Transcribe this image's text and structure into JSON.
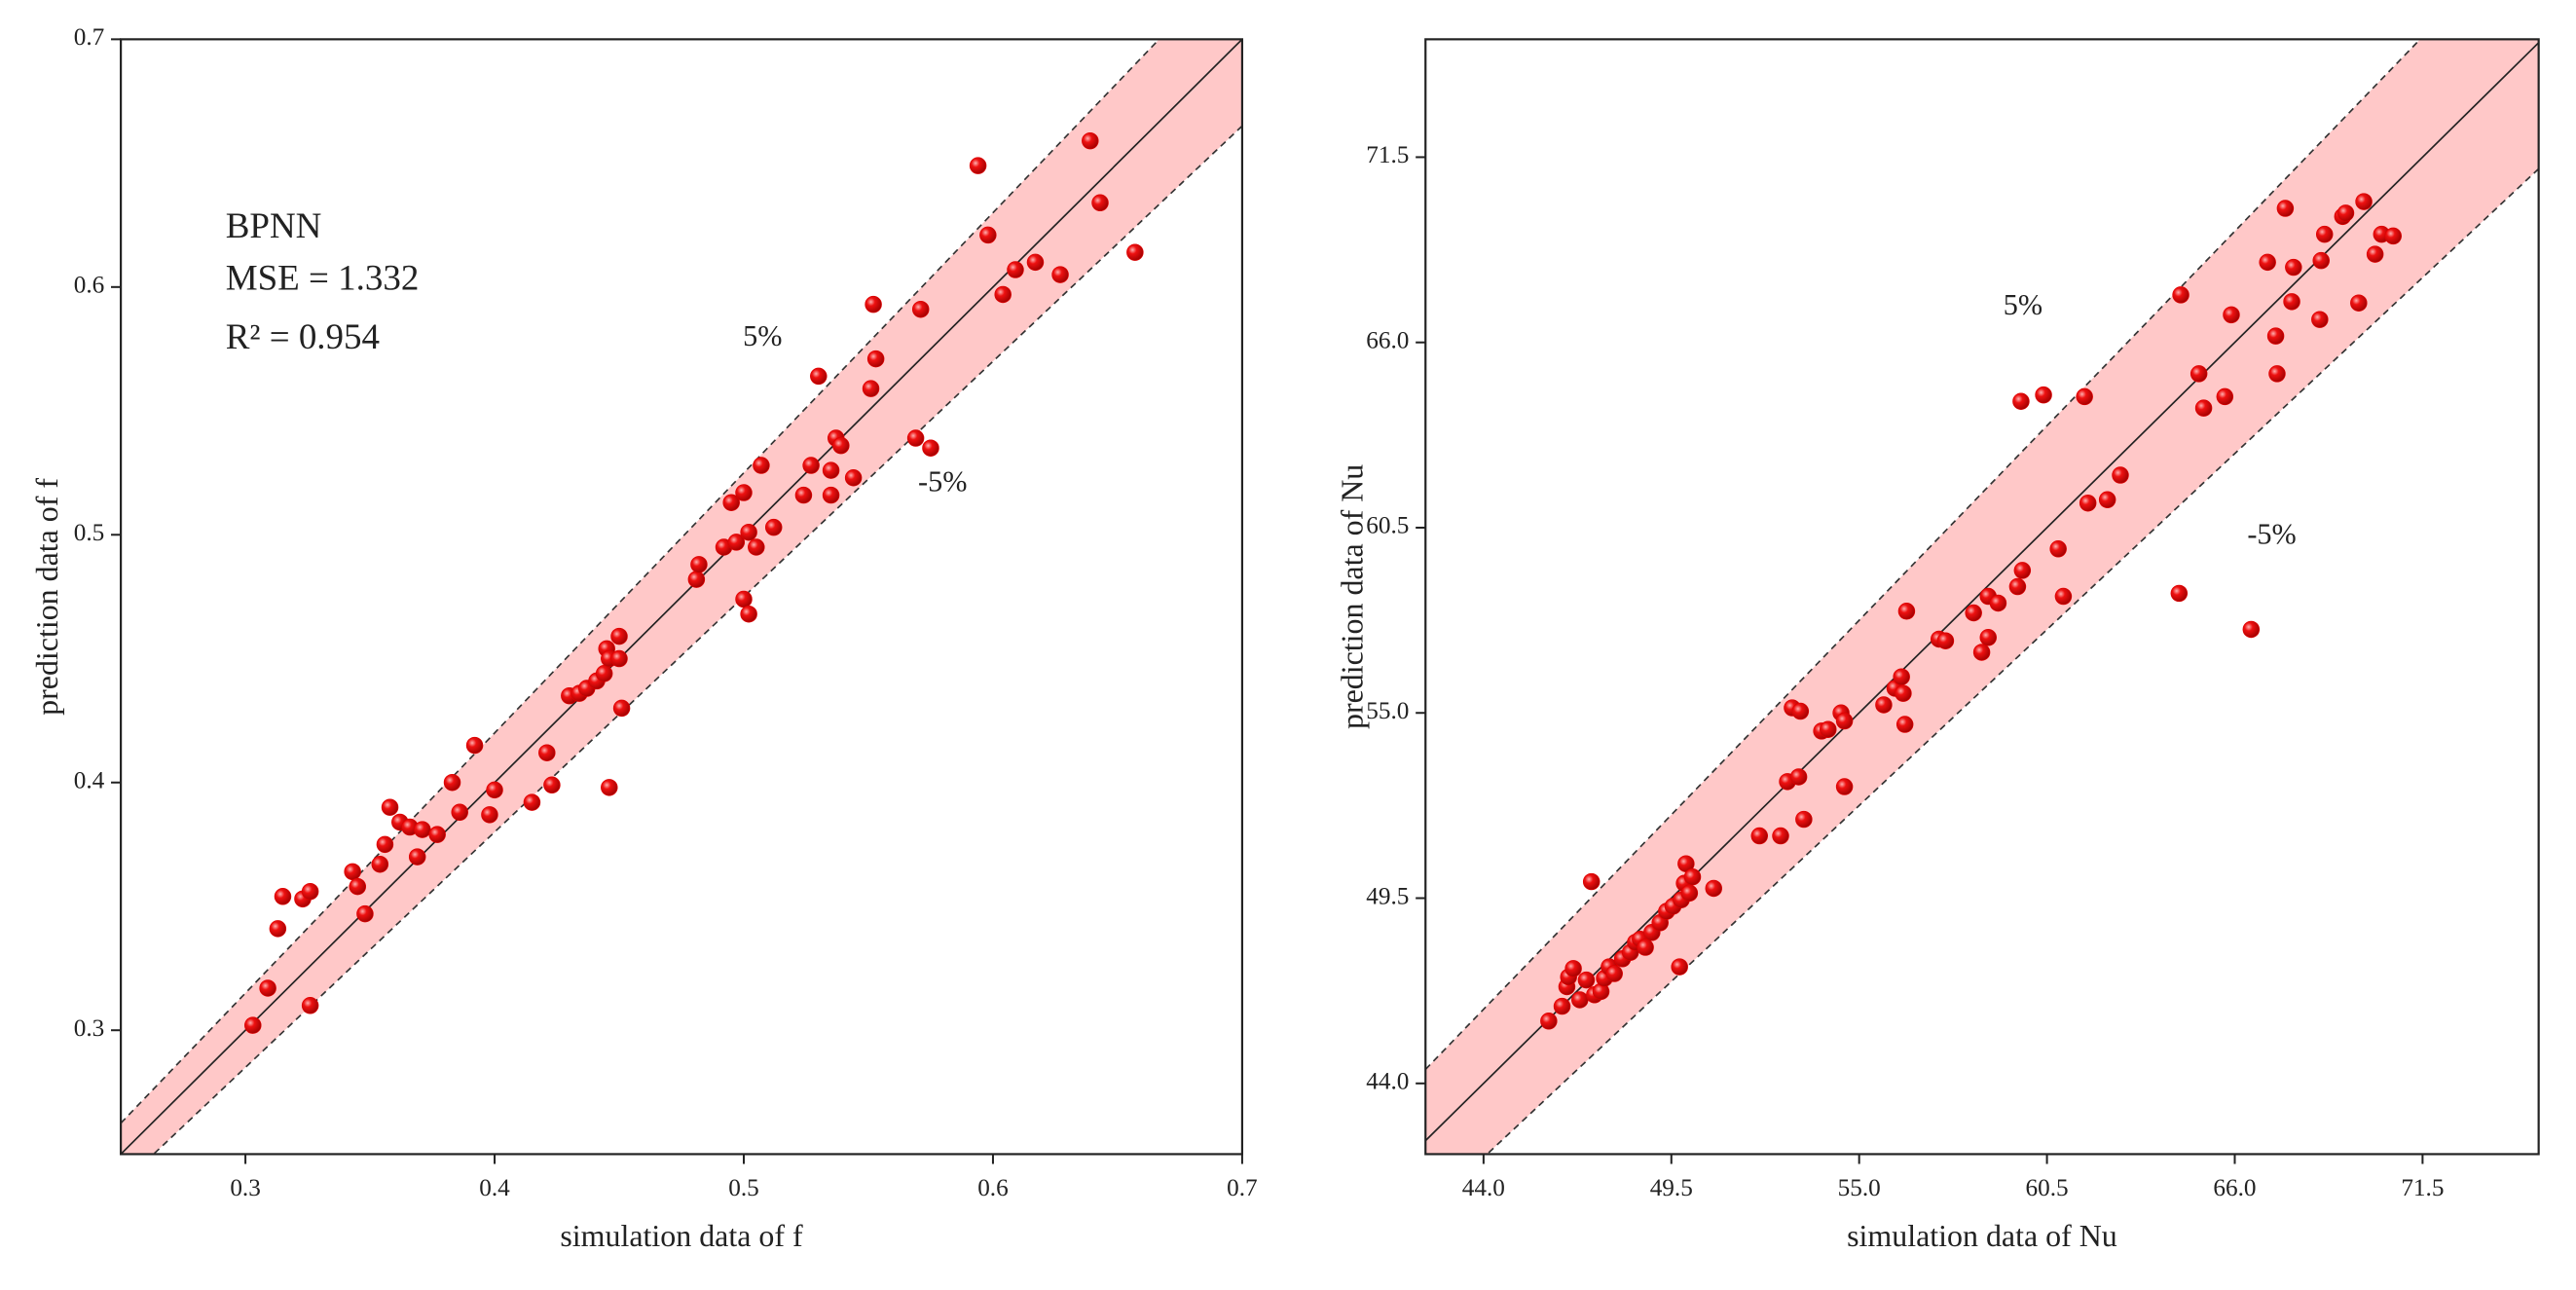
{
  "chart_data": [
    {
      "type": "scatter",
      "xlabel": "simulation data of f",
      "ylabel": "prediction data of f",
      "color": "#e00000",
      "band_color": "#ffc8c8",
      "band_fraction": 0.05,
      "band_labels": [
        "5%",
        "-5%"
      ],
      "text_box": [
        "BPNN",
        "MSE = 1.332",
        "R² = 0.954"
      ],
      "xlim": [
        0.25,
        0.7
      ],
      "ylim": [
        0.25,
        0.7
      ],
      "xticks": [
        0.3,
        0.4,
        0.5,
        0.6,
        0.7
      ],
      "yticks": [
        0.3,
        0.4,
        0.5,
        0.6,
        0.7
      ],
      "x": [
        0.303,
        0.309,
        0.326,
        0.313,
        0.315,
        0.323,
        0.326,
        0.343,
        0.345,
        0.348,
        0.354,
        0.356,
        0.358,
        0.362,
        0.366,
        0.369,
        0.371,
        0.377,
        0.383,
        0.386,
        0.392,
        0.398,
        0.4,
        0.415,
        0.421,
        0.423,
        0.43,
        0.434,
        0.437,
        0.441,
        0.444,
        0.445,
        0.446,
        0.446,
        0.45,
        0.45,
        0.451,
        0.481,
        0.482,
        0.492,
        0.495,
        0.497,
        0.5,
        0.502,
        0.5,
        0.502,
        0.505,
        0.507,
        0.512,
        0.524,
        0.527,
        0.53,
        0.535,
        0.535,
        0.537,
        0.539,
        0.544,
        0.551,
        0.553,
        0.552,
        0.569,
        0.571,
        0.575,
        0.594,
        0.598,
        0.604,
        0.609,
        0.617,
        0.627,
        0.639,
        0.643,
        0.657
      ],
      "y": [
        0.302,
        0.317,
        0.31,
        0.341,
        0.354,
        0.353,
        0.356,
        0.364,
        0.358,
        0.347,
        0.367,
        0.375,
        0.39,
        0.384,
        0.382,
        0.37,
        0.381,
        0.379,
        0.4,
        0.388,
        0.415,
        0.387,
        0.397,
        0.392,
        0.412,
        0.399,
        0.435,
        0.436,
        0.438,
        0.441,
        0.444,
        0.454,
        0.45,
        0.398,
        0.459,
        0.45,
        0.43,
        0.482,
        0.488,
        0.495,
        0.513,
        0.497,
        0.517,
        0.501,
        0.474,
        0.468,
        0.495,
        0.528,
        0.503,
        0.516,
        0.528,
        0.564,
        0.516,
        0.526,
        0.539,
        0.536,
        0.523,
        0.559,
        0.571,
        0.593,
        0.539,
        0.591,
        0.535,
        0.649,
        0.621,
        0.597,
        0.607,
        0.61,
        0.605,
        0.659,
        0.634,
        0.614
      ]
    },
    {
      "type": "scatter",
      "xlabel": "simulation data of Nu",
      "ylabel": "prediction data of Nu",
      "color": "#e00000",
      "band_color": "#ffc8c8",
      "band_fraction": 0.05,
      "band_labels": [
        "5%",
        "-5%"
      ],
      "xlim": [
        42.3,
        74.9
      ],
      "ylim": [
        41.9,
        75.0
      ],
      "xticks": [
        {
          "value": 44,
          "label": "44.0"
        },
        49.5,
        {
          "value": 55,
          "label": "55.0"
        },
        60.5,
        {
          "value": 66,
          "label": "66.0"
        },
        71.5
      ],
      "yticks": [
        {
          "value": 44,
          "label": "44.0"
        },
        49.5,
        {
          "value": 55,
          "label": "55.0"
        },
        60.5,
        {
          "value": 66,
          "label": "66.0"
        },
        71.5
      ],
      "x": [
        45.91,
        46.3,
        46.44,
        46.49,
        46.63,
        46.82,
        47.01,
        47.16,
        47.25,
        47.44,
        47.54,
        47.68,
        47.83,
        48.07,
        48.3,
        48.45,
        48.59,
        48.74,
        48.93,
        49.17,
        49.36,
        49.55,
        49.74,
        49.79,
        49.88,
        49.93,
        50.03,
        50.12,
        50.74,
        52.08,
        52.7,
        52.9,
        53.04,
        53.28,
        53.23,
        53.38,
        53.9,
        54.09,
        54.47,
        54.57,
        54.57,
        55.72,
        56.05,
        56.24,
        56.29,
        56.34,
        56.39,
        57.34,
        57.53,
        58.35,
        58.59,
        58.78,
        58.78,
        59.07,
        59.64,
        59.78,
        59.74,
        60.4,
        60.83,
        60.98,
        61.6,
        61.7,
        62.27,
        62.65,
        64.42,
        64.37,
        64.95,
        65.09,
        65.71,
        65.9,
        66.48,
        66.96,
        67.2,
        67.24,
        67.48,
        67.67,
        67.72,
        68.49,
        68.53,
        68.63,
        69.16,
        69.25,
        69.63,
        69.78,
        70.11,
        70.3,
        70.64
      ],
      "y": [
        45.85,
        46.29,
        46.87,
        47.16,
        47.41,
        46.48,
        47.07,
        49.99,
        46.63,
        46.73,
        47.12,
        47.46,
        47.26,
        47.7,
        47.89,
        48.19,
        48.28,
        48.04,
        48.48,
        48.77,
        49.11,
        49.26,
        47.46,
        49.45,
        49.94,
        50.52,
        49.65,
        50.13,
        49.79,
        51.35,
        51.35,
        52.96,
        55.15,
        55.05,
        53.1,
        51.84,
        54.46,
        54.51,
        55.0,
        52.81,
        54.76,
        55.24,
        55.73,
        56.07,
        55.58,
        54.66,
        58.02,
        57.19,
        57.14,
        57.97,
        56.8,
        57.24,
        58.46,
        58.26,
        58.75,
        59.23,
        64.25,
        64.44,
        59.87,
        58.46,
        64.39,
        61.23,
        61.33,
        62.06,
        67.41,
        58.55,
        65.07,
        64.05,
        64.39,
        66.82,
        57.48,
        68.38,
        66.19,
        65.07,
        69.98,
        67.21,
        68.23,
        66.68,
        68.43,
        69.21,
        69.74,
        69.84,
        67.17,
        70.18,
        68.62,
        69.21,
        69.16
      ]
    }
  ]
}
